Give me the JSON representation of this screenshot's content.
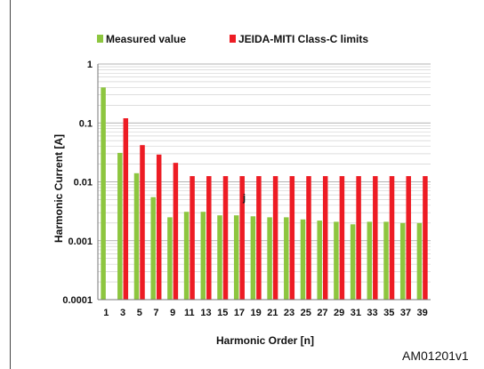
{
  "figure_id": "AM01201v1",
  "chart_data": {
    "type": "bar",
    "title": "",
    "xlabel": "Harmonic Order [n]",
    "ylabel": "Harmonic Current [A]",
    "yscale": "log",
    "ylim": [
      0.0001,
      1
    ],
    "y_ticks": [
      "0.0001",
      "0.001",
      "0.01",
      "0.1",
      "1"
    ],
    "grid": true,
    "legend_position": "top",
    "categories": [
      "1",
      "3",
      "5",
      "7",
      "9",
      "11",
      "13",
      "15",
      "17",
      "19",
      "21",
      "23",
      "25",
      "27",
      "29",
      "31",
      "33",
      "35",
      "37",
      "39"
    ],
    "series": [
      {
        "name": "Measured value",
        "color": "#8dc63f",
        "values": [
          0.4,
          0.031,
          0.014,
          0.0055,
          0.0025,
          0.0031,
          0.0031,
          0.0027,
          0.0027,
          0.0026,
          0.0025,
          0.0025,
          0.0023,
          0.0022,
          0.0021,
          0.0019,
          0.0021,
          0.0021,
          0.002,
          0.002
        ]
      },
      {
        "name": "JEIDA-MITI Class-C limits",
        "color": "#ed1c24",
        "values": [
          null,
          0.12,
          0.042,
          0.029,
          0.021,
          0.0125,
          0.0125,
          0.0125,
          0.0125,
          0.0125,
          0.0125,
          0.0125,
          0.0125,
          0.0125,
          0.0125,
          0.0125,
          0.0125,
          0.0125,
          0.0125,
          0.0125
        ]
      }
    ],
    "annotations": [
      "j"
    ]
  }
}
